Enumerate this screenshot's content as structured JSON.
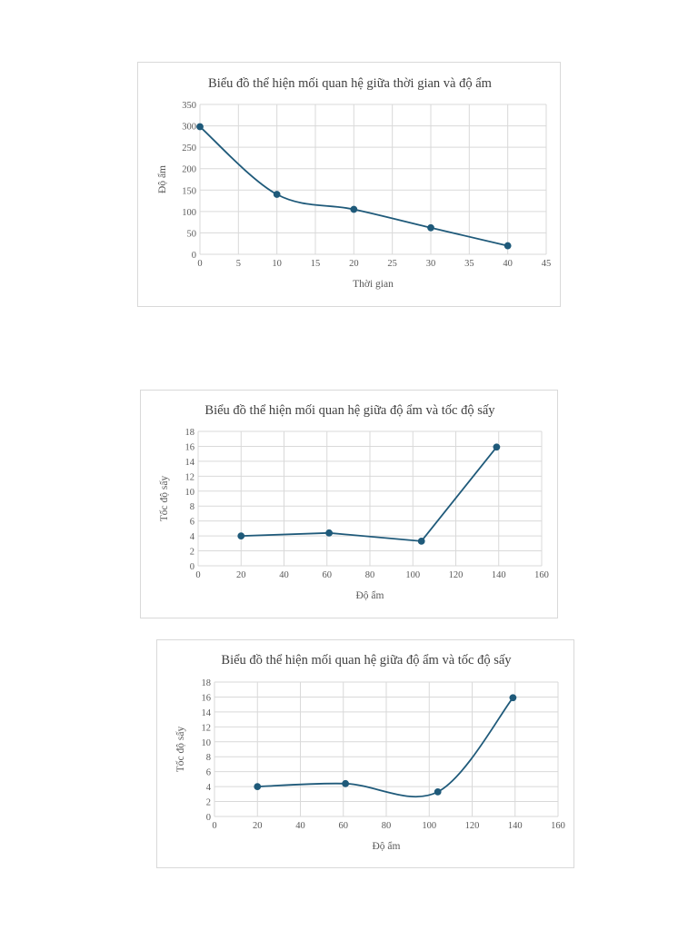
{
  "chart_data": [
    {
      "type": "line",
      "smooth": true,
      "title": "Biểu đồ thể hiện mối quan hệ giữa thời gian và độ ẩm",
      "xlabel": "Thời gian",
      "ylabel": "Độ ẩm",
      "xlim": [
        0,
        45
      ],
      "ylim": [
        0,
        350
      ],
      "xticks": [
        0,
        5,
        10,
        15,
        20,
        25,
        30,
        35,
        40,
        45
      ],
      "yticks": [
        0,
        50,
        100,
        150,
        200,
        250,
        300,
        350
      ],
      "grid": true,
      "series": [
        {
          "name": "Độ ẩm",
          "x": [
            0,
            10,
            20,
            30,
            40
          ],
          "y": [
            298,
            140,
            105,
            62,
            20
          ]
        }
      ]
    },
    {
      "type": "line",
      "smooth": false,
      "title": "Biểu đồ thể hiện mối quan hệ giữa độ ẩm và tốc độ sấy",
      "xlabel": "Độ ẩm",
      "ylabel": "Tốc độ sấy",
      "xlim": [
        0,
        160
      ],
      "ylim": [
        0,
        18
      ],
      "xticks": [
        0,
        20,
        40,
        60,
        80,
        100,
        120,
        140,
        160
      ],
      "yticks": [
        0,
        2,
        4,
        6,
        8,
        10,
        12,
        14,
        16,
        18
      ],
      "grid": true,
      "series": [
        {
          "name": "Tốc độ sấy",
          "x": [
            20,
            61,
            104,
            139
          ],
          "y": [
            4.0,
            4.4,
            3.3,
            15.9
          ]
        }
      ]
    },
    {
      "type": "line",
      "smooth": true,
      "title": "Biểu đồ thể hiện mối quan hệ giữa độ ẩm và tốc độ sấy",
      "xlabel": "Độ ẩm",
      "ylabel": "Tốc độ sấy",
      "xlim": [
        0,
        160
      ],
      "ylim": [
        0,
        18
      ],
      "xticks": [
        0,
        20,
        40,
        60,
        80,
        100,
        120,
        140,
        160
      ],
      "yticks": [
        0,
        2,
        4,
        6,
        8,
        10,
        12,
        14,
        16,
        18
      ],
      "grid": true,
      "series": [
        {
          "name": "Tốc độ sấy",
          "x": [
            20,
            61,
            104,
            139
          ],
          "y": [
            4.0,
            4.4,
            3.3,
            15.9
          ]
        }
      ]
    }
  ],
  "colors": {
    "series": "#1f5a7a",
    "grid": "#d9d9d9",
    "text": "#404040",
    "border": "#d9d9d9"
  }
}
